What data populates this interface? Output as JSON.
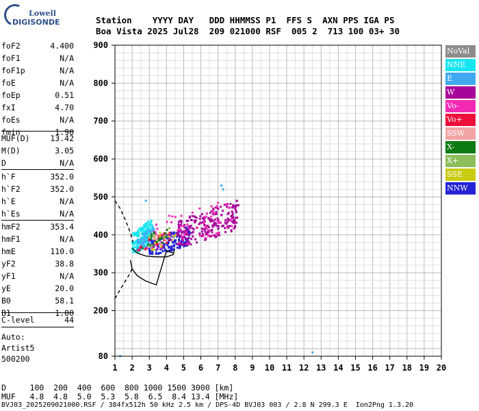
{
  "logo": {
    "line1": "Lowell",
    "line2": "DIGISONDE"
  },
  "header": {
    "line1": "Station    YYYY DAY   DDD HHMMSS P1  FFS S  AXN PPS IGA PS",
    "line2": "Boa Vista 2025 Jul28  209 021000 RSF  005 2  713 100 03+ 30"
  },
  "params_group1": [
    {
      "name": "foF2",
      "value": "4.400"
    },
    {
      "name": "foF1",
      "value": "N/A"
    },
    {
      "name": "foF1p",
      "value": "N/A"
    },
    {
      "name": "foE",
      "value": "N/A"
    },
    {
      "name": "foEp",
      "value": "0.51"
    },
    {
      "name": "fxI",
      "value": "4.70"
    },
    {
      "name": "foEs",
      "value": "N/A"
    },
    {
      "name": "fmin",
      "value": "1.90"
    }
  ],
  "params_group2": [
    {
      "name": "MUF(D)",
      "value": "13.42"
    },
    {
      "name": "M(D)",
      "value": "3.05"
    },
    {
      "name": "D",
      "value": "N/A"
    }
  ],
  "params_group3": [
    {
      "name": "h`F",
      "value": "352.0"
    },
    {
      "name": "h`F2",
      "value": "352.0"
    },
    {
      "name": "h`E",
      "value": "N/A"
    },
    {
      "name": "h`Es",
      "value": "N/A"
    }
  ],
  "params_group4": [
    {
      "name": "hmF2",
      "value": "353.4"
    },
    {
      "name": "hmF1",
      "value": "N/A"
    },
    {
      "name": "hmE",
      "value": "110.0"
    },
    {
      "name": "yF2",
      "value": "38.8"
    },
    {
      "name": "yF1",
      "value": "N/A"
    },
    {
      "name": "yE",
      "value": "20.0"
    },
    {
      "name": "B0",
      "value": "58.1"
    },
    {
      "name": "B1",
      "value": "1.00"
    }
  ],
  "params_group5": [
    {
      "name": "C-level",
      "value": "44"
    }
  ],
  "autoscale": {
    "line1": "Auto:",
    "line2": "Artist5",
    "line3": "500200"
  },
  "bottom": {
    "d_line": "D     100  200  400  600  800 1000 1500 3000 [km]",
    "muf_line": "MUF   4.8  4.8  5.0  5.3  5.8  6.5  8.4 13.4 [MHz]",
    "footer": "BVJ03_2025209021000.RSF / 384fx512h 50 kHz 2.5 km / DPS-4D BVJ03 003 / 2.8 N 299.3 E  Ion2Png 1.3.20"
  },
  "legend": [
    {
      "label": "NoVal",
      "color": "#8c8c8c"
    },
    {
      "label": "NNE",
      "color": "#18e6ef"
    },
    {
      "label": "E",
      "color": "#3fa8f0"
    },
    {
      "label": "W",
      "color": "#a8069a"
    },
    {
      "label": "Vo-",
      "color": "#f22ab4"
    },
    {
      "label": "Vo+",
      "color": "#ee0f3c"
    },
    {
      "label": "SSW",
      "color": "#f2a4a4"
    },
    {
      "label": "X-",
      "color": "#0d7a12"
    },
    {
      "label": "X+",
      "color": "#8cbf5c"
    },
    {
      "label": "SSE",
      "color": "#c9cc12"
    },
    {
      "label": "NNW",
      "color": "#2424d6"
    }
  ],
  "chart_data": {
    "type": "scatter",
    "title": "",
    "xlabel": "",
    "ylabel": "",
    "xlim": [
      1,
      20
    ],
    "ylim": [
      80,
      900
    ],
    "x_ticks": [
      1,
      2,
      3,
      4,
      5,
      6,
      7,
      8,
      9,
      10,
      11,
      12,
      13,
      14,
      15,
      16,
      17,
      18,
      19,
      20
    ],
    "y_ticks": [
      80,
      200,
      300,
      400,
      500,
      600,
      700,
      800,
      900
    ],
    "grid": true,
    "legend_position": "right",
    "echo_clusters": [
      {
        "name": "NNE",
        "x_range": [
          2.0,
          3.2
        ],
        "y_range": [
          355,
          440
        ],
        "count": 160
      },
      {
        "name": "E",
        "x_range": [
          2.3,
          3.3
        ],
        "y_range": [
          360,
          420
        ],
        "count": 60
      },
      {
        "name": "NNW",
        "x_range": [
          3.0,
          5.4
        ],
        "y_range": [
          350,
          420
        ],
        "count": 180
      },
      {
        "name": "W",
        "x_range": [
          4.6,
          8.2
        ],
        "y_range": [
          375,
          490
        ],
        "count": 230
      },
      {
        "name": "Vo-",
        "x_range": [
          2.8,
          7.8
        ],
        "y_range": [
          365,
          490
        ],
        "count": 70
      },
      {
        "name": "Vo+",
        "x_range": [
          2.3,
          4.2
        ],
        "y_range": [
          355,
          410
        ],
        "count": 30
      },
      {
        "name": "X-",
        "x_range": [
          2.6,
          4.4
        ],
        "y_range": [
          365,
          425
        ],
        "count": 20
      },
      {
        "name": "SSE",
        "x_range": [
          3.0,
          4.6
        ],
        "y_range": [
          360,
          430
        ],
        "count": 12
      },
      {
        "name": "X+",
        "x_range": [
          2.8,
          4.2
        ],
        "y_range": [
          370,
          420
        ],
        "count": 10
      },
      {
        "name": "SSW",
        "x_range": [
          3.2,
          4.5
        ],
        "y_range": [
          370,
          420
        ],
        "count": 10
      }
    ],
    "isolated_echoes": [
      {
        "x": 1.3,
        "y": 80,
        "series": "E"
      },
      {
        "x": 12.5,
        "y": 90,
        "series": "E"
      },
      {
        "x": 7.2,
        "y": 530,
        "series": "E"
      },
      {
        "x": 7.3,
        "y": 520,
        "series": "E"
      },
      {
        "x": 2.8,
        "y": 490,
        "series": "E"
      }
    ],
    "trace_solid": {
      "x": [
        2.0,
        2.3,
        2.8,
        3.4,
        4.0,
        4.4,
        4.45
      ],
      "y": [
        365,
        352,
        344,
        342,
        342,
        348,
        362
      ]
    },
    "trace_solid_lower": {
      "x": [
        1.9,
        2.0,
        2.3,
        2.8,
        3.4,
        4.0,
        4.4
      ],
      "y": [
        333,
        310,
        292,
        278,
        268,
        358,
        352
      ]
    },
    "trace_dashed_upper": {
      "x": [
        1.0,
        1.3,
        1.6,
        1.9,
        2.05
      ],
      "y": [
        490,
        470,
        440,
        405,
        380
      ]
    },
    "trace_dashed_lower": {
      "x": [
        1.0,
        1.3,
        1.6,
        1.9,
        2.0
      ],
      "y": [
        232,
        255,
        278,
        300,
        312
      ]
    }
  }
}
